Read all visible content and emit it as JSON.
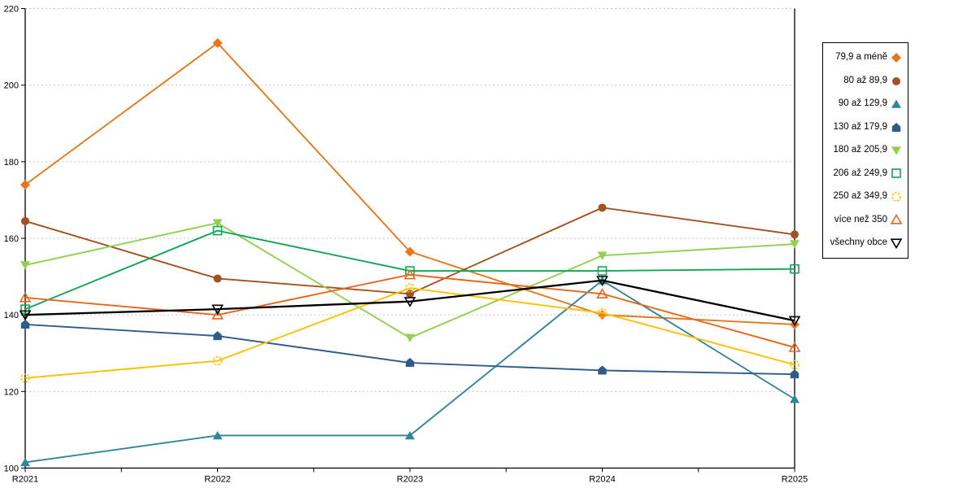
{
  "chart_data": {
    "type": "line",
    "categories": [
      "R2021",
      "R2022",
      "R2023",
      "R2024",
      "R2025"
    ],
    "series": [
      {
        "name": "79,9 a méně",
        "marker": "diamond",
        "marker_style": "filled",
        "color": "#E8761B",
        "values": [
          174,
          211,
          156.5,
          140,
          137.5
        ]
      },
      {
        "name": "80 až 89,9",
        "marker": "circle",
        "marker_style": "filled",
        "color": "#A35120",
        "values": [
          164.5,
          149.5,
          145.5,
          168,
          161
        ]
      },
      {
        "name": "90 až 129,9",
        "marker": "triangle-up",
        "marker_style": "filled",
        "color": "#31849B",
        "values": [
          101.5,
          108.5,
          108.5,
          149,
          118
        ]
      },
      {
        "name": "130 až 179,9",
        "marker": "pentagon",
        "marker_style": "filled",
        "color": "#2E5C8A",
        "values": [
          137.5,
          134.5,
          127.5,
          125.5,
          124.5
        ]
      },
      {
        "name": "180 až 205,9",
        "marker": "triangle-down",
        "marker_style": "filled",
        "color": "#92D050",
        "values": [
          153,
          164,
          134,
          155.5,
          158.5
        ]
      },
      {
        "name": "206 až 249,9",
        "marker": "square",
        "marker_style": "open",
        "color": "#0FA655",
        "values": [
          141.5,
          162,
          151.5,
          151.5,
          152
        ]
      },
      {
        "name": "250 až 349,9",
        "marker": "circle-dashed",
        "marker_style": "open",
        "color": "#FFC000",
        "values": [
          123.5,
          128,
          147,
          140.5,
          127
        ]
      },
      {
        "name": "více než 350",
        "marker": "triangle-up",
        "marker_style": "open",
        "color": "#E8661C",
        "values": [
          144.5,
          140,
          150.5,
          145.5,
          131.5
        ]
      },
      {
        "name": "všechny obce",
        "marker": "triangle-down",
        "marker_style": "open",
        "color": "#000000",
        "values": [
          140,
          141.5,
          143.5,
          149,
          138.5
        ]
      }
    ],
    "title": "",
    "xlabel": "",
    "ylabel": "",
    "y_axis": {
      "min": 100,
      "max": 220,
      "step": 20
    },
    "x_tick_labels": [
      "R2021",
      "R2022",
      "R2023",
      "R2024",
      "R2025"
    ],
    "y_tick_labels": [
      "100",
      "120",
      "140",
      "160",
      "180",
      "200",
      "220"
    ],
    "grid": "horizontal-dashed",
    "legend_position": "right"
  },
  "colors": {
    "background": "#FFFFFF",
    "gridline": "#C6C6C6",
    "axis": "#000000",
    "legend_border": "#000000",
    "text": "#000000"
  }
}
